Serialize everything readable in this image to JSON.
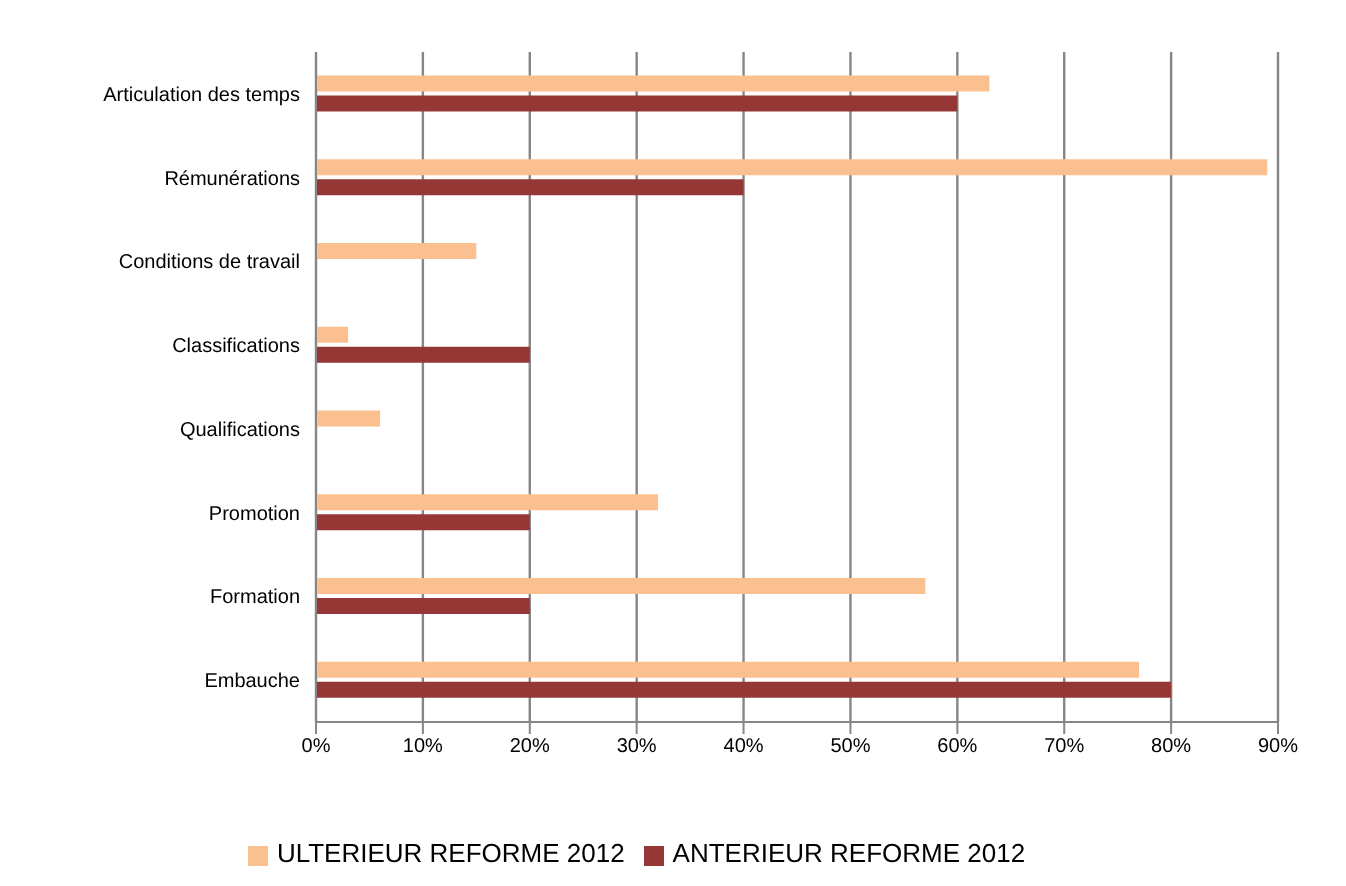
{
  "chart_data": {
    "type": "bar",
    "orientation": "horizontal",
    "categories": [
      "Articulation des temps",
      "Rémunérations",
      "Conditions de travail",
      "Classifications",
      "Qualifications",
      "Promotion",
      "Formation",
      "Embauche"
    ],
    "series": [
      {
        "name": "ULTERIEUR REFORME 2012",
        "color": "#fac090",
        "values": [
          63,
          89,
          15,
          3,
          6,
          32,
          57,
          77
        ]
      },
      {
        "name": "ANTERIEUR REFORME 2012",
        "color": "#953735",
        "values": [
          60,
          40,
          0,
          20,
          0,
          20,
          20,
          80
        ]
      }
    ],
    "xlim": [
      0,
      90
    ],
    "xticks": [
      {
        "value": 0,
        "label": "0%"
      },
      {
        "value": 10,
        "label": "10%"
      },
      {
        "value": 20,
        "label": "20%"
      },
      {
        "value": 30,
        "label": "30%"
      },
      {
        "value": 40,
        "label": "40%"
      },
      {
        "value": 50,
        "label": "50%"
      },
      {
        "value": 60,
        "label": "60%"
      },
      {
        "value": 70,
        "label": "70%"
      },
      {
        "value": 80,
        "label": "80%"
      },
      {
        "value": 90,
        "label": "90%"
      }
    ],
    "grid": "x",
    "legend": "bottom"
  }
}
